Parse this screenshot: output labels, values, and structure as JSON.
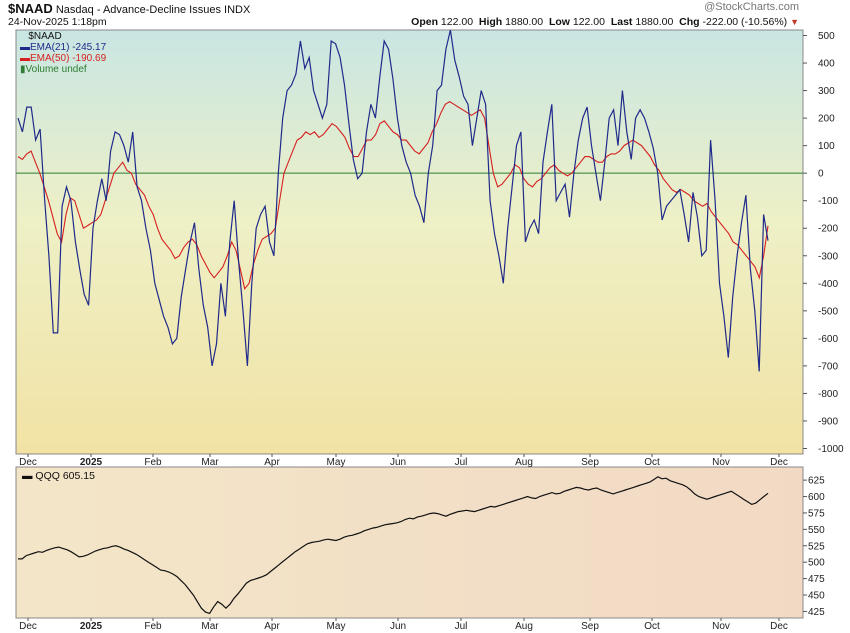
{
  "header": {
    "symbol": "$NAAD",
    "name": "Nasdaq - Advance-Decline Issues",
    "exchange": "INDX",
    "date": "24-Nov-2025 1:18pm",
    "watermark": "@StockCharts.com",
    "open_label": "Open",
    "open": "122.00",
    "high_label": "High",
    "high": "1880.00",
    "low_label": "Low",
    "low": "122.00",
    "last_label": "Last",
    "last": "1880.00",
    "chg_label": "Chg",
    "chg": "-222.00 (-10.56%)",
    "chg_arrow": "▼"
  },
  "legend": {
    "title": "$NAAD",
    "ema21": "EMA(21) -245.17",
    "ema50": "EMA(50) -190.69",
    "volume": "Volume undef"
  },
  "colors": {
    "naad": "#1f2a8a",
    "ema50": "#d62020",
    "qqq": "#111111",
    "zero_line": "#2e7d32"
  },
  "chart_data": [
    {
      "type": "line",
      "title": "$NAAD",
      "y_ticks": [
        500,
        400,
        300,
        200,
        100,
        0,
        -100,
        -200,
        -300,
        -400,
        -500,
        -600,
        -700,
        -800,
        -900,
        -1000
      ],
      "ylim": [
        -1020,
        520
      ],
      "x_ticks": [
        "Dec",
        "2025",
        "Feb",
        "Mar",
        "Apr",
        "May",
        "Jun",
        "Jul",
        "Aug",
        "Sep",
        "Oct",
        "Nov",
        "Dec"
      ],
      "reference_line": 0,
      "series": [
        {
          "name": "EMA(21)",
          "values": [
            200,
            150,
            240,
            240,
            120,
            160,
            -90,
            -300,
            -580,
            -580,
            -120,
            -50,
            -100,
            -250,
            -350,
            -440,
            -480,
            -200,
            -100,
            -20,
            -100,
            80,
            150,
            140,
            100,
            40,
            150,
            -50,
            -100,
            -200,
            -280,
            -400,
            -460,
            -520,
            -560,
            -620,
            -600,
            -450,
            -350,
            -250,
            -180,
            -350,
            -480,
            -560,
            -700,
            -620,
            -400,
            -520,
            -250,
            -100,
            -320,
            -500,
            -700,
            -400,
            -200,
            -150,
            -120,
            -250,
            -300,
            0,
            200,
            300,
            320,
            360,
            480,
            380,
            420,
            300,
            250,
            200,
            250,
            480,
            470,
            420,
            320,
            180,
            50,
            -20,
            0,
            150,
            250,
            200,
            350,
            480,
            450,
            340,
            200,
            100,
            40,
            0,
            -80,
            -120,
            -180,
            0,
            100,
            300,
            320,
            450,
            520,
            410,
            350,
            280,
            250,
            100,
            200,
            300,
            250,
            -100,
            -220,
            -300,
            -400,
            -200,
            -50,
            100,
            150,
            -250,
            -200,
            -170,
            -220,
            40,
            150,
            250,
            -100,
            -70,
            -40,
            -160,
            0,
            120,
            200,
            240,
            100,
            0,
            -100,
            40,
            200,
            230,
            100,
            300,
            150,
            50,
            200,
            230,
            200,
            150,
            90,
            0,
            -170,
            -120,
            -100,
            -80,
            -60,
            -150,
            -250,
            -70,
            -160,
            -300,
            -280,
            120,
            -100,
            -400,
            -520,
            -670,
            -450,
            -300,
            -180,
            -80,
            -350,
            -500,
            -720,
            -150,
            -245
          ]
        },
        {
          "name": "EMA(50)",
          "values": [
            60,
            50,
            70,
            80,
            40,
            0,
            -50,
            -100,
            -160,
            -220,
            -250,
            -150,
            -90,
            -100,
            -150,
            -200,
            -190,
            -180,
            -170,
            -150,
            -100,
            -50,
            0,
            20,
            40,
            10,
            0,
            -40,
            -60,
            -80,
            -120,
            -150,
            -200,
            -240,
            -260,
            -280,
            -310,
            -300,
            -270,
            -250,
            -240,
            -260,
            -300,
            -330,
            -360,
            -380,
            -360,
            -340,
            -300,
            -250,
            -280,
            -350,
            -420,
            -400,
            -330,
            -280,
            -240,
            -230,
            -220,
            -200,
            -100,
            0,
            40,
            80,
            120,
            130,
            150,
            140,
            150,
            130,
            140,
            160,
            180,
            170,
            150,
            130,
            90,
            60,
            60,
            90,
            120,
            120,
            140,
            180,
            190,
            170,
            150,
            140,
            120,
            120,
            100,
            80,
            70,
            90,
            110,
            150,
            180,
            220,
            250,
            260,
            250,
            240,
            230,
            220,
            210,
            220,
            230,
            200,
            100,
            0,
            -50,
            -40,
            -20,
            0,
            30,
            20,
            -20,
            -40,
            -50,
            -30,
            -20,
            0,
            20,
            30,
            10,
            0,
            -10,
            0,
            20,
            40,
            60,
            60,
            50,
            40,
            40,
            60,
            70,
            70,
            80,
            100,
            110,
            120,
            110,
            100,
            80,
            60,
            30,
            10,
            -20,
            -40,
            -60,
            -70,
            -60,
            -70,
            -80,
            -100,
            -110,
            -120,
            -110,
            -140,
            -160,
            -180,
            -200,
            -220,
            -250,
            -260,
            -280,
            -300,
            -320,
            -340,
            -380,
            -300,
            -191
          ]
        }
      ]
    },
    {
      "type": "line",
      "title": "QQQ 605.15",
      "y_ticks": [
        625,
        600,
        575,
        550,
        525,
        500,
        475,
        450,
        425
      ],
      "ylim": [
        415,
        645
      ],
      "x_ticks": [
        "Dec",
        "2025",
        "Feb",
        "Mar",
        "Apr",
        "May",
        "Jun",
        "Jul",
        "Aug",
        "Sep",
        "Oct",
        "Nov",
        "Dec"
      ],
      "series": [
        {
          "name": "QQQ",
          "values": [
            505,
            505,
            510,
            512,
            514,
            516,
            515,
            518,
            520,
            522,
            523,
            521,
            519,
            516,
            512,
            508,
            509,
            511,
            514,
            517,
            519,
            521,
            522,
            524,
            525,
            523,
            520,
            518,
            515,
            512,
            508,
            504,
            500,
            496,
            492,
            488,
            487,
            485,
            482,
            478,
            472,
            466,
            458,
            450,
            440,
            430,
            424,
            422,
            432,
            440,
            436,
            430,
            436,
            445,
            452,
            460,
            468,
            472,
            474,
            476,
            478,
            481,
            486,
            491,
            496,
            501,
            506,
            511,
            516,
            520,
            524,
            528,
            530,
            531,
            532,
            534,
            535,
            534,
            533,
            535,
            538,
            540,
            541,
            543,
            545,
            548,
            550,
            552,
            553,
            555,
            557,
            558,
            559,
            560,
            562,
            565,
            567,
            566,
            569,
            570,
            572,
            574,
            575,
            574,
            572,
            570,
            573,
            575,
            577,
            578,
            579,
            578,
            577,
            579,
            581,
            583,
            585,
            584,
            586,
            588,
            590,
            592,
            594,
            596,
            598,
            600,
            598,
            597,
            600,
            602,
            604,
            606,
            604,
            605,
            608,
            610,
            612,
            614,
            613,
            611,
            610,
            612,
            613,
            610,
            608,
            606,
            604,
            606,
            608,
            610,
            612,
            614,
            616,
            618,
            620,
            622,
            626,
            630,
            627,
            628,
            624,
            622,
            620,
            618,
            615,
            610,
            604,
            600,
            598,
            596,
            598,
            600,
            602,
            604,
            606,
            608,
            604,
            600,
            596,
            592,
            588,
            590,
            595,
            600,
            605
          ]
        }
      ]
    }
  ]
}
